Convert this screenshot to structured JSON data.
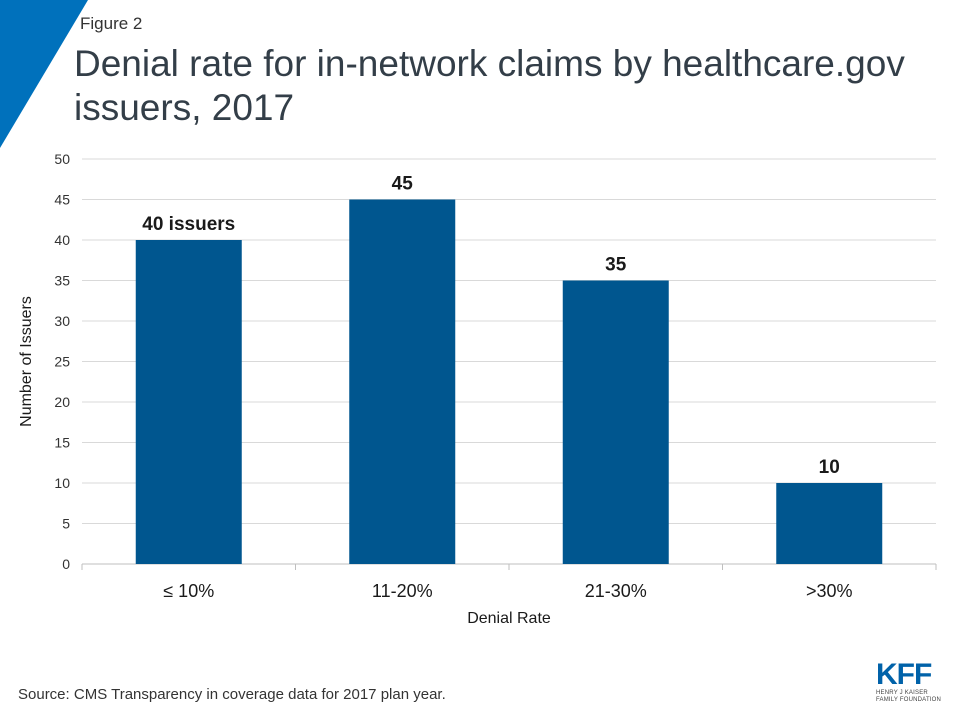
{
  "figure_label": "Figure 2",
  "title": "Denial rate for in-network claims by healthcare.gov issuers, 2017",
  "source": "Source: CMS Transparency  in coverage data for 2017 plan year.",
  "logo": {
    "text": "KFF",
    "tagline_1": "HENRY J KAISER",
    "tagline_2": "FAMILY FOUNDATION"
  },
  "colors": {
    "bar": "#00568f",
    "corner": "#0071bc",
    "grid": "#d9d9d9"
  },
  "chart_data": {
    "type": "bar",
    "categories": [
      "≤ 10%",
      "11-20%",
      "21-30%",
      ">30%"
    ],
    "values": [
      40,
      45,
      35,
      10
    ],
    "data_labels": [
      "40 issuers",
      "45",
      "35",
      "10"
    ],
    "xlabel": "Denial Rate",
    "ylabel": "Number of Issuers",
    "ylim": [
      0,
      50
    ],
    "yticks": [
      0,
      5,
      10,
      15,
      20,
      25,
      30,
      35,
      40,
      45,
      50
    ],
    "grid": true
  }
}
